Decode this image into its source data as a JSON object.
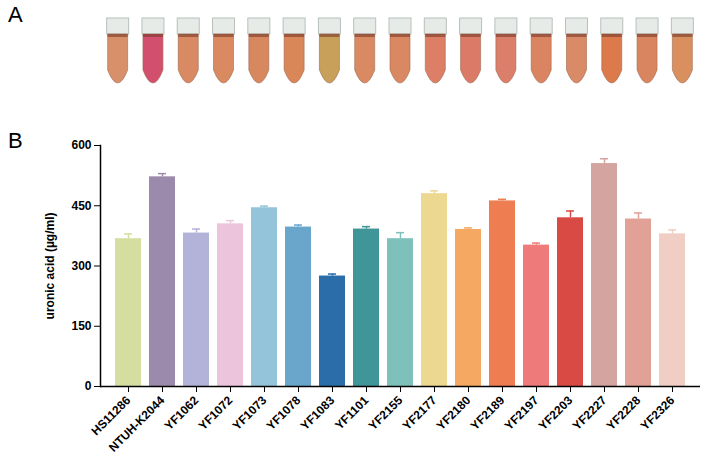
{
  "panel_labels": [
    "A",
    "B"
  ],
  "chart_data": {
    "type": "bar",
    "ylabel": "uronic acid (µg/ml)",
    "categories": [
      "HS11286",
      "NTUH-K2044",
      "YF1062",
      "YF1072",
      "YF1073",
      "YF1078",
      "YF1083",
      "YF1101",
      "YF2155",
      "YF2177",
      "YF2180",
      "YF2189",
      "YF2197",
      "YF2203",
      "YF2227",
      "YF2228",
      "YF2326"
    ],
    "values": [
      368,
      522,
      382,
      405,
      445,
      397,
      275,
      392,
      368,
      480,
      391,
      462,
      352,
      420,
      555,
      417,
      380
    ],
    "errors": [
      12,
      8,
      10,
      8,
      4,
      5,
      5,
      6,
      15,
      7,
      4,
      4,
      5,
      17,
      12,
      15,
      10
    ],
    "colors": [
      "#d6dda0",
      "#9b8aab",
      "#b3b3d9",
      "#ecc4dc",
      "#93c4d9",
      "#6aa6cc",
      "#2a6da8",
      "#3f9597",
      "#7ec1bb",
      "#ecd890",
      "#f4a862",
      "#ef7d52",
      "#ee7a7a",
      "#d94a45",
      "#d3a4a0",
      "#e1a196",
      "#f0cec4"
    ],
    "ylim": [
      0,
      600
    ],
    "yticks": [
      0,
      150,
      300,
      450,
      600
    ],
    "grid": false
  }
}
